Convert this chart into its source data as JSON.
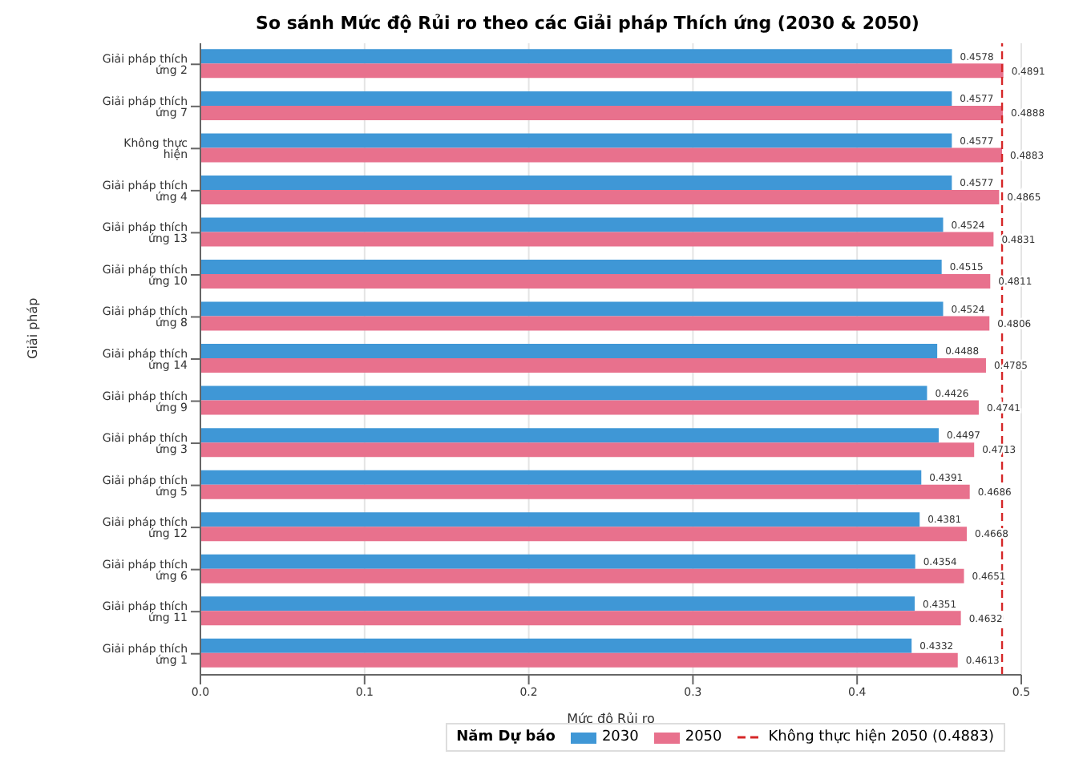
{
  "chart_data": {
    "type": "bar",
    "orientation": "horizontal",
    "title": "So sánh Mức độ Rủi ro theo các Giải pháp Thích ứng (2030 & 2050)",
    "xlabel": "Mức độ Rủi ro",
    "ylabel": "Giải pháp",
    "categories": [
      "Giải pháp thích ứng 2",
      "Giải pháp thích ứng 7",
      "Không thực hiện",
      "Giải pháp thích ứng 4",
      "Giải pháp thích ứng 13",
      "Giải pháp thích ứng 10",
      "Giải pháp thích ứng 8",
      "Giải pháp thích ứng 14",
      "Giải pháp thích ứng 9",
      "Giải pháp thích ứng 3",
      "Giải pháp thích ứng 5",
      "Giải pháp thích ứng 12",
      "Giải pháp thích ứng 6",
      "Giải pháp thích ứng 11",
      "Giải pháp thích ứng 1"
    ],
    "series": [
      {
        "name": "2030",
        "color": "#3f97d6",
        "values": [
          0.4578,
          0.4577,
          0.4577,
          0.4577,
          0.4524,
          0.4515,
          0.4524,
          0.4488,
          0.4426,
          0.4497,
          0.4391,
          0.4381,
          0.4354,
          0.4351,
          0.4332
        ]
      },
      {
        "name": "2050",
        "color": "#e8718d",
        "values": [
          0.4891,
          0.4888,
          0.4883,
          0.4865,
          0.4831,
          0.4811,
          0.4806,
          0.4785,
          0.4741,
          0.4713,
          0.4686,
          0.4668,
          0.4651,
          0.4632,
          0.4613
        ]
      }
    ],
    "xlim": [
      0,
      0.5
    ],
    "xticks": [
      {
        "value": 0,
        "label": "0.0"
      },
      {
        "value": 0.1,
        "label": "0.1"
      },
      {
        "value": 0.2,
        "label": "0.2"
      },
      {
        "value": 0.3,
        "label": "0.3"
      },
      {
        "value": 0.4,
        "label": "0.4"
      },
      {
        "value": 0.5,
        "label": "0.5"
      }
    ],
    "ref_lines": [
      {
        "axis": "x",
        "value": 0.4883,
        "label": "Không thực hiện 2050 (0.4883)",
        "color": "#d62728",
        "line_style": "dashed"
      }
    ],
    "legend_title": "Năm Dự báo",
    "legend": "bottom right",
    "grid": "x",
    "data_labels": true
  }
}
